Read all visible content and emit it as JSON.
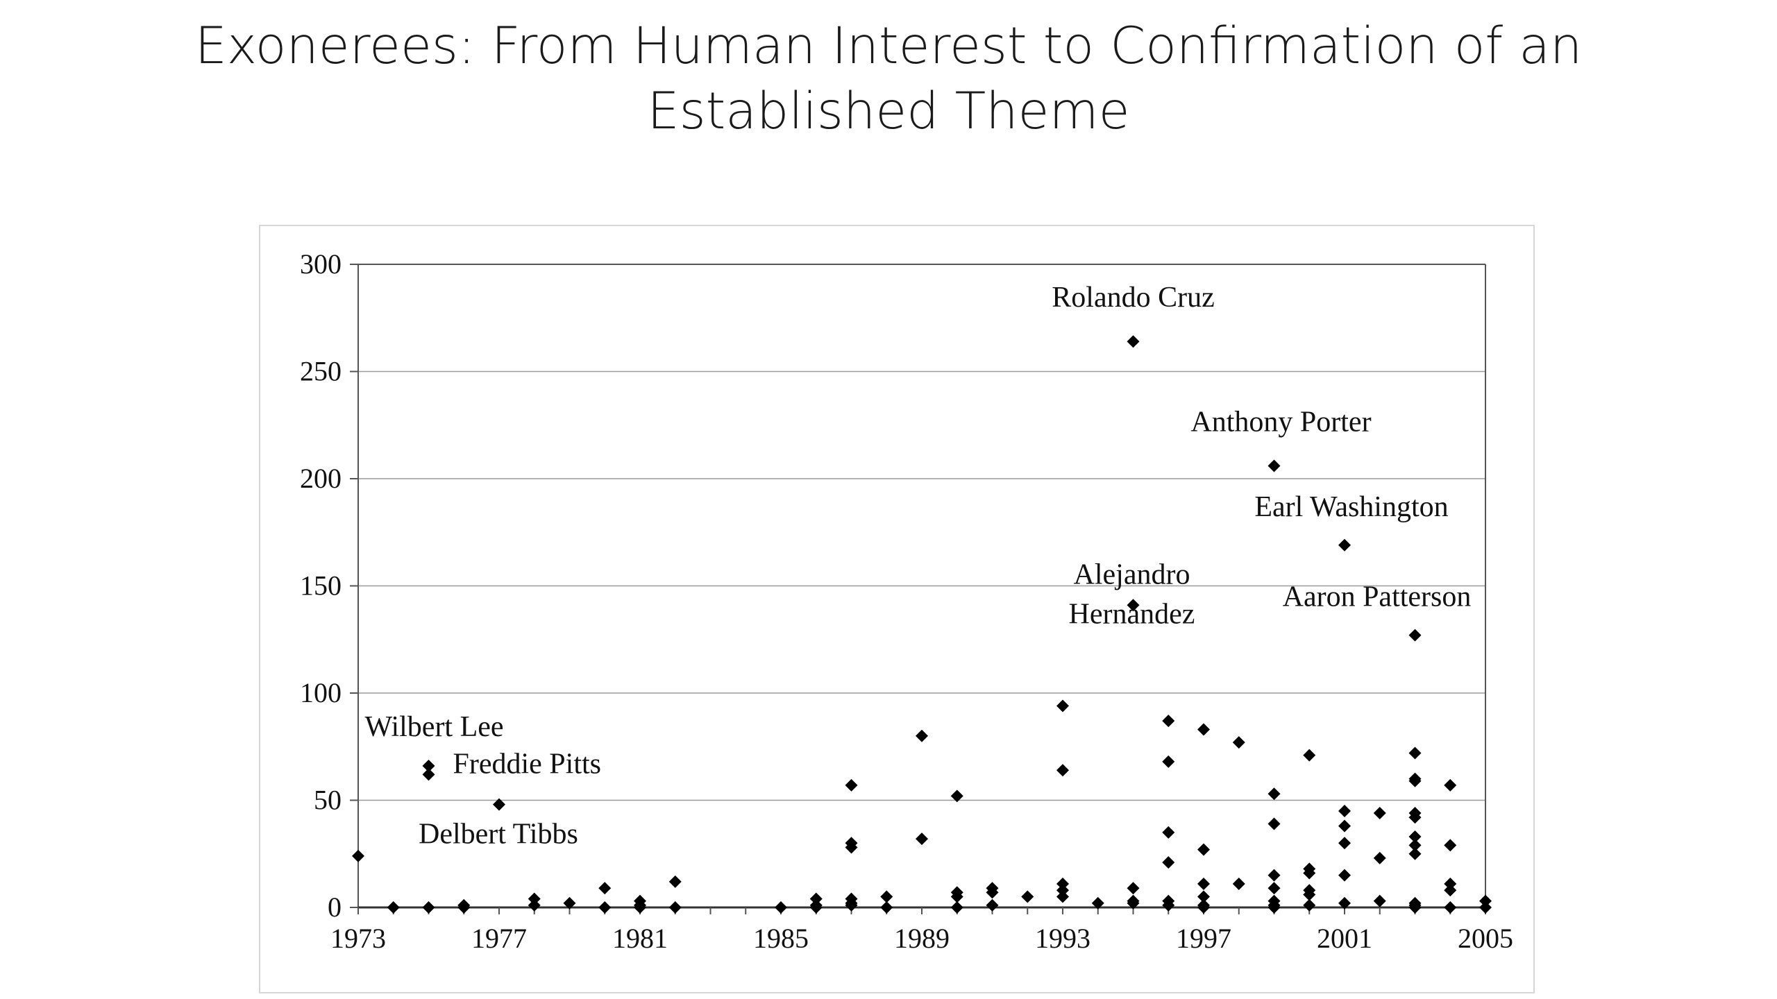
{
  "slide": {
    "title": "Exonerees: From Human Interest to Confirmation of an Established Theme"
  },
  "chart_data": {
    "type": "scatter",
    "title": "",
    "xlabel": "",
    "ylabel": "",
    "xlim": [
      1973,
      2005
    ],
    "ylim": [
      0,
      300
    ],
    "x_ticks": [
      "1973",
      "1977",
      "1981",
      "1985",
      "1989",
      "1993",
      "1997",
      "2001",
      "2005"
    ],
    "y_ticks": [
      "0",
      "50",
      "100",
      "150",
      "200",
      "250",
      "300"
    ],
    "grid": "horizontal",
    "legend": "none",
    "marker": "diamond",
    "colors": {
      "marker": "#000000",
      "axis": "#555555",
      "grid": "#9a9a9a",
      "frame": "#d6d6d6"
    },
    "annotations": [
      {
        "label": "Rolando Cruz",
        "x": 1995,
        "y": 264
      },
      {
        "label": "Anthony Porter",
        "x": 1999,
        "y": 206
      },
      {
        "label": "Earl Washington",
        "x": 2001,
        "y": 169
      },
      {
        "label": "Alejandro",
        "x": 1995,
        "y": 150
      },
      {
        "label": "Hernandez",
        "x": 1995,
        "y": 150
      },
      {
        "label": "Aaron Patterson",
        "x": 2003,
        "y": 127
      },
      {
        "label": "Wilbert Lee",
        "x": 1975,
        "y": 66
      },
      {
        "label": "Freddie Pitts",
        "x": 1975,
        "y": 62
      },
      {
        "label": "Delbert Tibbs",
        "x": 1977,
        "y": 48
      }
    ],
    "points": [
      [
        1973,
        24
      ],
      [
        1974,
        0
      ],
      [
        1975,
        66
      ],
      [
        1975,
        62
      ],
      [
        1975,
        0
      ],
      [
        1976,
        1
      ],
      [
        1976,
        0
      ],
      [
        1977,
        48
      ],
      [
        1978,
        4
      ],
      [
        1978,
        1
      ],
      [
        1979,
        2
      ],
      [
        1980,
        9
      ],
      [
        1980,
        0
      ],
      [
        1981,
        3
      ],
      [
        1981,
        1
      ],
      [
        1981,
        0
      ],
      [
        1982,
        12
      ],
      [
        1982,
        0
      ],
      [
        1985,
        0
      ],
      [
        1986,
        4
      ],
      [
        1986,
        1
      ],
      [
        1986,
        0
      ],
      [
        1987,
        57
      ],
      [
        1987,
        30
      ],
      [
        1987,
        28
      ],
      [
        1987,
        4
      ],
      [
        1987,
        2
      ],
      [
        1987,
        1
      ],
      [
        1988,
        5
      ],
      [
        1988,
        0
      ],
      [
        1989,
        80
      ],
      [
        1989,
        32
      ],
      [
        1990,
        52
      ],
      [
        1990,
        7
      ],
      [
        1990,
        5
      ],
      [
        1990,
        0
      ],
      [
        1991,
        9
      ],
      [
        1991,
        7
      ],
      [
        1991,
        1
      ],
      [
        1992,
        5
      ],
      [
        1993,
        94
      ],
      [
        1993,
        64
      ],
      [
        1993,
        11
      ],
      [
        1993,
        8
      ],
      [
        1993,
        5
      ],
      [
        1994,
        2
      ],
      [
        1995,
        264
      ],
      [
        1995,
        141
      ],
      [
        1995,
        9
      ],
      [
        1995,
        3
      ],
      [
        1995,
        2
      ],
      [
        1996,
        87
      ],
      [
        1996,
        68
      ],
      [
        1996,
        35
      ],
      [
        1996,
        21
      ],
      [
        1996,
        3
      ],
      [
        1996,
        1
      ],
      [
        1997,
        83
      ],
      [
        1997,
        27
      ],
      [
        1997,
        11
      ],
      [
        1997,
        5
      ],
      [
        1997,
        1
      ],
      [
        1997,
        0
      ],
      [
        1998,
        77
      ],
      [
        1998,
        11
      ],
      [
        1999,
        206
      ],
      [
        1999,
        53
      ],
      [
        1999,
        39
      ],
      [
        1999,
        15
      ],
      [
        1999,
        9
      ],
      [
        1999,
        3
      ],
      [
        1999,
        1
      ],
      [
        1999,
        0
      ],
      [
        2000,
        71
      ],
      [
        2000,
        18
      ],
      [
        2000,
        16
      ],
      [
        2000,
        8
      ],
      [
        2000,
        6
      ],
      [
        2000,
        1
      ],
      [
        2001,
        169
      ],
      [
        2001,
        45
      ],
      [
        2001,
        38
      ],
      [
        2001,
        30
      ],
      [
        2001,
        15
      ],
      [
        2001,
        2
      ],
      [
        2002,
        44
      ],
      [
        2002,
        23
      ],
      [
        2002,
        3
      ],
      [
        2003,
        127
      ],
      [
        2003,
        72
      ],
      [
        2003,
        60
      ],
      [
        2003,
        59
      ],
      [
        2003,
        44
      ],
      [
        2003,
        42
      ],
      [
        2003,
        33
      ],
      [
        2003,
        29
      ],
      [
        2003,
        25
      ],
      [
        2003,
        2
      ],
      [
        2003,
        1
      ],
      [
        2003,
        0
      ],
      [
        2004,
        57
      ],
      [
        2004,
        29
      ],
      [
        2004,
        11
      ],
      [
        2004,
        8
      ],
      [
        2004,
        0
      ],
      [
        2005,
        3
      ],
      [
        2005,
        0
      ]
    ]
  }
}
